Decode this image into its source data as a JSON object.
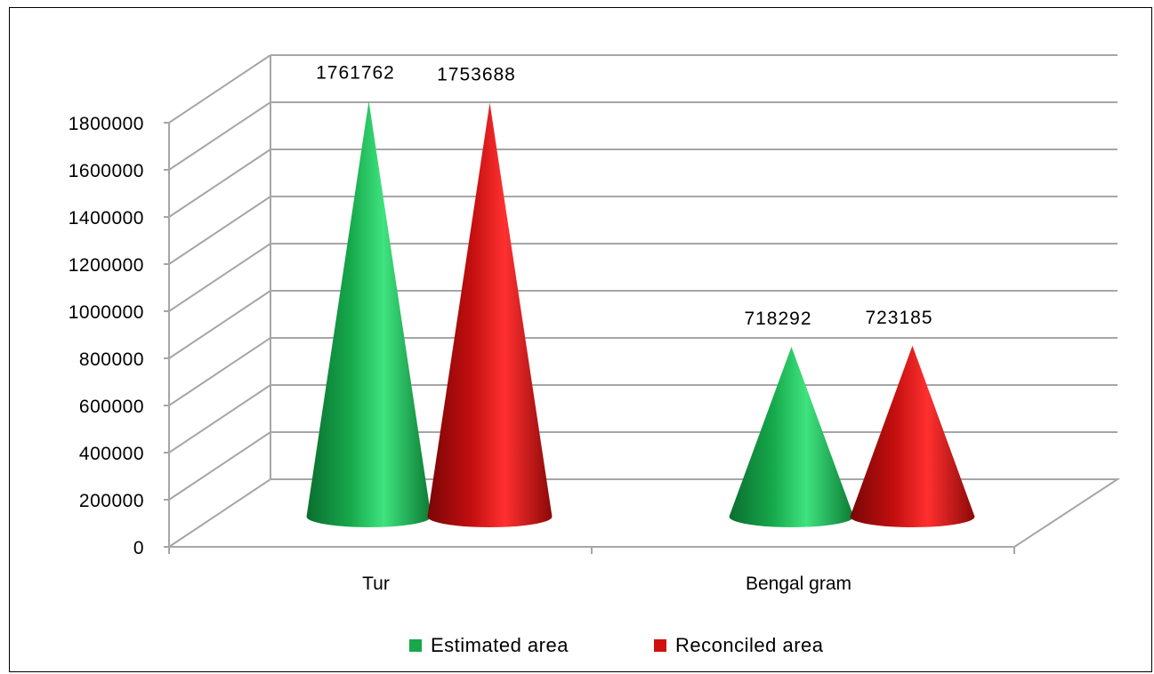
{
  "chart_data": {
    "type": "bar",
    "style": "3d-cone",
    "categories": [
      "Tur",
      "Bengal gram"
    ],
    "series": [
      {
        "name": "Estimated area",
        "values": [
          1761762,
          718292
        ],
        "color": "#16a84b"
      },
      {
        "name": "Reconciled area",
        "values": [
          1753688,
          723185
        ],
        "color": "#d0100f"
      }
    ],
    "ylim": [
      0,
      1800000
    ],
    "yticks": [
      "0",
      "200000",
      "400000",
      "600000",
      "800000",
      "1000000",
      "1200000",
      "1400000",
      "1600000",
      "1800000"
    ],
    "grid": true,
    "legend": "bottom",
    "data_labels": true,
    "title": "",
    "xlabel": "",
    "ylabel": ""
  }
}
